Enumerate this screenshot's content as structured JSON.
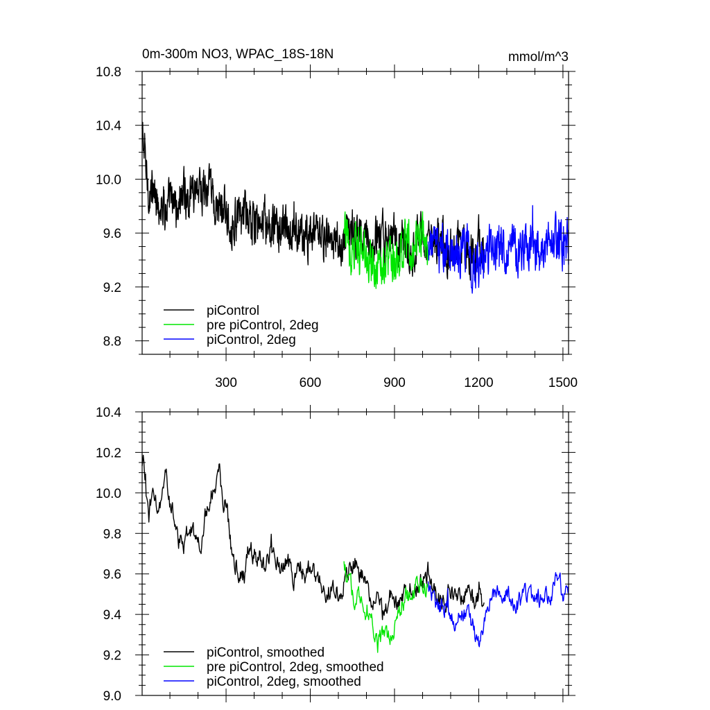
{
  "chart_data": [
    {
      "type": "line",
      "title": "0m-300m NO3, WPAC_18S-18N",
      "units": "mmol/m^3",
      "xlim": [
        1,
        1520
      ],
      "ylim": [
        8.7,
        10.8
      ],
      "xticks": [
        300,
        600,
        900,
        1200,
        1500
      ],
      "xtick_labels": [
        "300",
        "600",
        "900",
        "1200",
        "1500"
      ],
      "yticks": [
        8.8,
        9.2,
        9.6,
        10.0,
        10.4,
        10.8
      ],
      "ytick_labels": [
        "8.8",
        "9.2",
        "9.6",
        "10.0",
        "10.4",
        "10.8"
      ],
      "legend_position": "bottom-left",
      "series": [
        {
          "name": "piControl",
          "color": "#000000",
          "x": [
            1,
            20,
            40,
            60,
            80,
            100,
            120,
            140,
            160,
            180,
            200,
            220,
            240,
            260,
            280,
            300,
            320,
            340,
            360,
            380,
            400,
            420,
            440,
            460,
            480,
            500,
            520,
            540,
            560,
            580,
            600,
            620,
            640,
            660,
            680,
            700,
            720,
            740,
            760,
            780,
            800,
            820,
            840,
            860,
            880,
            900,
            920,
            940,
            960,
            980,
            1000,
            1020,
            1040,
            1060,
            1080,
            1100,
            1120,
            1140,
            1160,
            1180,
            1200,
            1220
          ],
          "values": [
            10.35,
            9.98,
            9.88,
            9.85,
            9.82,
            9.8,
            9.78,
            9.87,
            9.85,
            9.93,
            9.97,
            9.92,
            9.88,
            9.82,
            9.78,
            9.75,
            9.7,
            9.68,
            9.72,
            9.7,
            9.65,
            9.63,
            9.66,
            9.62,
            9.63,
            9.64,
            9.58,
            9.6,
            9.58,
            9.56,
            9.6,
            9.57,
            9.55,
            9.56,
            9.52,
            9.53,
            9.54,
            9.6,
            9.58,
            9.55,
            9.58,
            9.52,
            9.55,
            9.54,
            9.58,
            9.56,
            9.52,
            9.55,
            9.5,
            9.52,
            9.53,
            9.55,
            9.5,
            9.54,
            9.52,
            9.48,
            9.5,
            9.52,
            9.5,
            9.47,
            9.5,
            9.48
          ]
        },
        {
          "name": "pre piControl, 2deg",
          "color": "#00e600",
          "x": [
            720,
            740,
            760,
            780,
            800,
            820,
            840,
            860,
            880,
            900,
            920,
            940,
            960,
            980,
            1000,
            1020
          ],
          "values": [
            9.6,
            9.55,
            9.5,
            9.45,
            9.4,
            9.35,
            9.3,
            9.35,
            9.4,
            9.45,
            9.5,
            9.55,
            9.5,
            9.52,
            9.55,
            9.5
          ]
        },
        {
          "name": "piControl, 2deg",
          "color": "#0000ff",
          "x": [
            1020,
            1040,
            1060,
            1080,
            1100,
            1120,
            1140,
            1160,
            1180,
            1200,
            1220,
            1240,
            1260,
            1280,
            1300,
            1320,
            1340,
            1360,
            1380,
            1400,
            1420,
            1440,
            1460,
            1480,
            1500,
            1520
          ],
          "values": [
            9.5,
            9.52,
            9.45,
            9.48,
            9.46,
            9.42,
            9.44,
            9.45,
            9.4,
            9.35,
            9.4,
            9.45,
            9.47,
            9.48,
            9.5,
            9.52,
            9.5,
            9.49,
            9.5,
            9.52,
            9.5,
            9.51,
            9.53,
            9.55,
            9.52,
            9.54
          ]
        }
      ]
    },
    {
      "type": "line",
      "xlim": [
        1,
        1520
      ],
      "ylim": [
        9.0,
        10.4
      ],
      "xticks": [
        300,
        600,
        900,
        1200,
        1500
      ],
      "yticks": [
        9.0,
        9.2,
        9.4,
        9.6,
        9.8,
        10.0,
        10.2,
        10.4
      ],
      "ytick_labels": [
        "9.0",
        "9.2",
        "9.4",
        "9.6",
        "9.8",
        "10.0",
        "10.2",
        "10.4"
      ],
      "legend_position": "bottom-left",
      "series": [
        {
          "name": "piControl, smoothed",
          "color": "#000000",
          "x": [
            1,
            5,
            15,
            25,
            40,
            55,
            70,
            85,
            100,
            115,
            130,
            150,
            170,
            190,
            210,
            225,
            240,
            260,
            275,
            290,
            305,
            320,
            335,
            350,
            365,
            380,
            400,
            420,
            440,
            460,
            480,
            500,
            520,
            540,
            560,
            580,
            600,
            620,
            640,
            660,
            680,
            700,
            720,
            740,
            760,
            780,
            800,
            820,
            840,
            860,
            880,
            900,
            920,
            940,
            960,
            980,
            1000,
            1020,
            1040,
            1060,
            1080,
            1100,
            1120,
            1140,
            1160,
            1180,
            1200,
            1220
          ],
          "values": [
            10.12,
            10.22,
            9.98,
            9.88,
            10.05,
            9.92,
            9.95,
            10.1,
            9.92,
            9.9,
            9.78,
            9.72,
            9.85,
            9.78,
            9.75,
            9.88,
            9.95,
            10.05,
            10.1,
            9.98,
            9.9,
            9.72,
            9.65,
            9.55,
            9.6,
            9.72,
            9.7,
            9.68,
            9.62,
            9.72,
            9.68,
            9.62,
            9.67,
            9.55,
            9.65,
            9.6,
            9.62,
            9.58,
            9.56,
            9.5,
            9.55,
            9.52,
            9.55,
            9.62,
            9.65,
            9.6,
            9.55,
            9.48,
            9.47,
            9.4,
            9.5,
            9.47,
            9.45,
            9.52,
            9.5,
            9.55,
            9.55,
            9.62,
            9.5,
            9.47,
            9.45,
            9.52,
            9.5,
            9.48,
            9.52,
            9.45,
            9.48,
            9.42
          ]
        },
        {
          "name": "pre piControl, 2deg, smoothed",
          "color": "#00e600",
          "x": [
            720,
            740,
            760,
            780,
            800,
            820,
            840,
            860,
            880,
            900,
            920,
            940,
            960,
            980,
            1000,
            1020
          ],
          "values": [
            9.65,
            9.55,
            9.45,
            9.5,
            9.4,
            9.35,
            9.25,
            9.3,
            9.28,
            9.35,
            9.42,
            9.5,
            9.48,
            9.55,
            9.55,
            9.5
          ]
        },
        {
          "name": "piControl, 2deg, smoothed",
          "color": "#0000ff",
          "x": [
            1020,
            1040,
            1060,
            1080,
            1100,
            1120,
            1140,
            1160,
            1180,
            1200,
            1220,
            1240,
            1260,
            1280,
            1300,
            1320,
            1340,
            1360,
            1380,
            1400,
            1420,
            1440,
            1460,
            1480,
            1500,
            1520
          ],
          "values": [
            9.55,
            9.48,
            9.42,
            9.45,
            9.4,
            9.38,
            9.42,
            9.4,
            9.35,
            9.2,
            9.38,
            9.45,
            9.5,
            9.52,
            9.5,
            9.48,
            9.45,
            9.48,
            9.5,
            9.45,
            9.48,
            9.52,
            9.5,
            9.58,
            9.52,
            9.55
          ]
        }
      ]
    }
  ]
}
